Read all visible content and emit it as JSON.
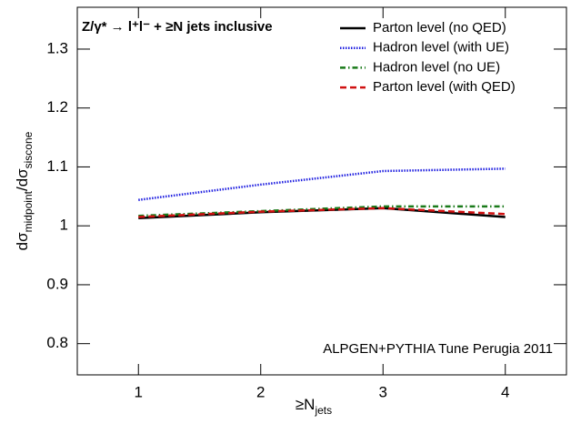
{
  "chart_data": {
    "type": "line",
    "title": "Z/γ* → l⁺l⁻ + ≥N jets inclusive",
    "annotation": "ALPGEN+PYTHIA Tune Perugia 2011",
    "xlabel": [
      "≥N",
      "jets"
    ],
    "ylabel": [
      "dσ",
      "midpoint",
      "/dσ",
      "siscone"
    ],
    "x": [
      1,
      2,
      3,
      4
    ],
    "series": [
      {
        "name": "Parton level (no QED)",
        "color": "#000000",
        "style": "solid",
        "values": [
          1.013,
          1.023,
          1.03,
          1.015
        ]
      },
      {
        "name": "Hadron level (with UE)",
        "color": "#1f1fe0",
        "style": "dotted",
        "values": [
          1.044,
          1.07,
          1.093,
          1.097
        ]
      },
      {
        "name": "Hadron level (no UE)",
        "color": "#1a7a1a",
        "style": "dashdot",
        "values": [
          1.017,
          1.025,
          1.033,
          1.033
        ]
      },
      {
        "name": "Parton level (with QED)",
        "color": "#d01010",
        "style": "dashed",
        "values": [
          1.015,
          1.024,
          1.03,
          1.02
        ]
      }
    ],
    "xlim": [
      0.5,
      4.5
    ],
    "xticks": [
      1,
      2,
      3,
      4
    ],
    "ylim": [
      0.747,
      1.371
    ],
    "yticks": [
      0.8,
      0.9,
      1,
      1.1,
      1.2,
      1.3
    ],
    "legend": "top-right",
    "grid": false
  }
}
